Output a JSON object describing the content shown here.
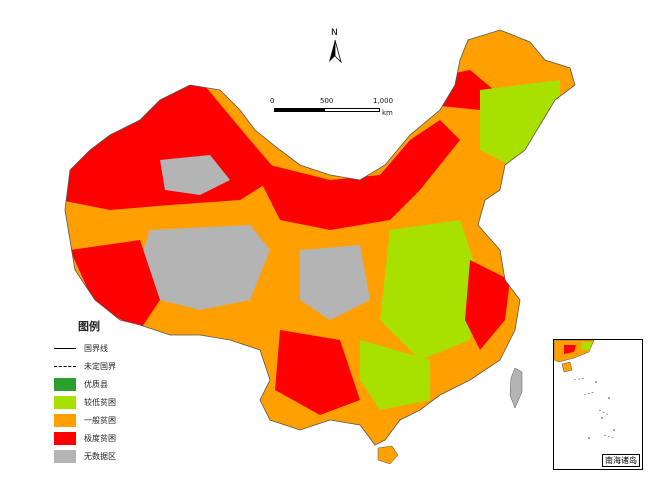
{
  "map": {
    "north_label": "N",
    "scale": {
      "ticks": [
        "0",
        "500",
        "1,000"
      ],
      "unit": "km"
    },
    "legend": {
      "title": "图例",
      "items": [
        {
          "label": "国界线",
          "kind": "line"
        },
        {
          "label": "未定国界",
          "kind": "dashed"
        },
        {
          "label": "优质县",
          "kind": "swatch",
          "color": "#2ca02c"
        },
        {
          "label": "较低贫困",
          "kind": "swatch",
          "color": "#a8e000"
        },
        {
          "label": "一般贫困",
          "kind": "swatch",
          "color": "#ffa000"
        },
        {
          "label": "极度贫困",
          "kind": "swatch",
          "color": "#ff0000"
        },
        {
          "label": "无数据区",
          "kind": "swatch",
          "color": "#b4b4b4"
        }
      ]
    },
    "inset_caption": "南海诸岛",
    "colors": {
      "red": "#ff0000",
      "orange": "#ffa000",
      "gray": "#b4b4b4",
      "lime": "#a8e000",
      "green": "#2ca02c",
      "water": "#ffffff"
    }
  }
}
